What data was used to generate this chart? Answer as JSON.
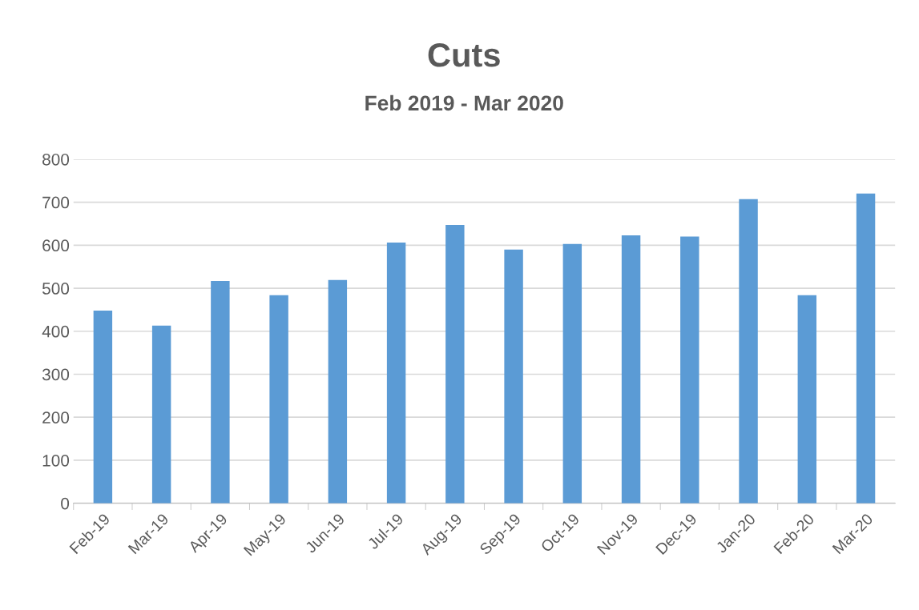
{
  "chart_data": {
    "type": "bar",
    "title": "Cuts",
    "subtitle": "Feb 2019 - Mar 2020",
    "categories": [
      "Feb-19",
      "Mar-19",
      "Apr-19",
      "May-19",
      "Jun-19",
      "Jul-19",
      "Aug-19",
      "Sep-19",
      "Oct-19",
      "Nov-19",
      "Dec-19",
      "Jan-20",
      "Feb-20",
      "Mar-20"
    ],
    "values": [
      448,
      413,
      517,
      484,
      519,
      606,
      647,
      590,
      603,
      623,
      620,
      707,
      484,
      720
    ],
    "color": "#5b9bd5",
    "ylim": [
      0,
      800
    ],
    "yticks": [
      0,
      100,
      200,
      300,
      400,
      500,
      600,
      700,
      800
    ],
    "grid": "y"
  }
}
